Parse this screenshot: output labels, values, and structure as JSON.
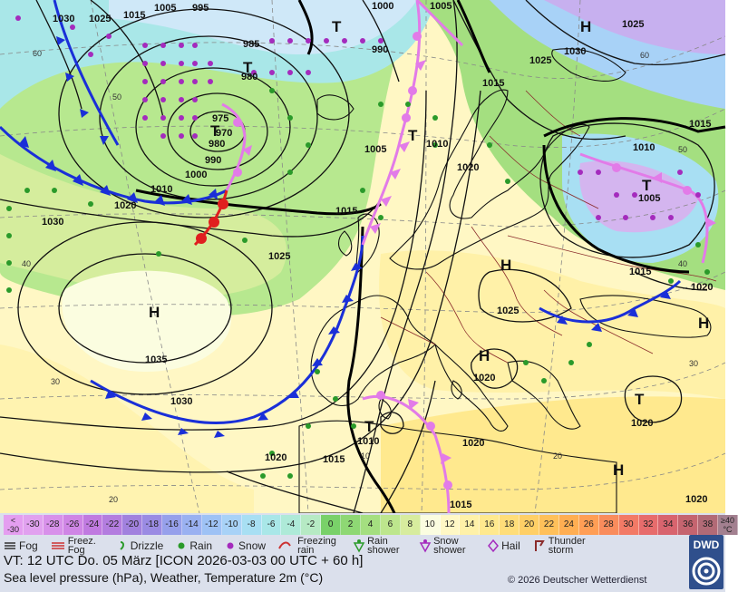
{
  "map": {
    "centers": [
      {
        "type": "H",
        "label": "H"
      },
      {
        "type": "H",
        "label": "H"
      },
      {
        "type": "H",
        "label": "H"
      },
      {
        "type": "H",
        "label": "H"
      },
      {
        "type": "H",
        "label": "H"
      },
      {
        "type": "H",
        "label": "H"
      },
      {
        "type": "T",
        "label": "T"
      },
      {
        "type": "T",
        "label": "T"
      },
      {
        "type": "T",
        "label": "T"
      },
      {
        "type": "T",
        "label": "T"
      },
      {
        "type": "T",
        "label": "T"
      },
      {
        "type": "T",
        "label": "T"
      },
      {
        "type": "T",
        "label": "T"
      }
    ],
    "isobar_labels": [
      "1030",
      "1025",
      "1015",
      "1005",
      "995",
      "1000",
      "1005",
      "985",
      "990",
      "980",
      "975",
      "970",
      "980",
      "990",
      "1000",
      "1010",
      "1020",
      "1030",
      "1015",
      "1005",
      "1010",
      "1020",
      "1025",
      "1035",
      "1030",
      "1020",
      "1010",
      "1015",
      "1020",
      "1030",
      "1025",
      "1015",
      "1010",
      "1005",
      "1015",
      "1020",
      "1025",
      "1020",
      "1025",
      "1015",
      "1020",
      "1020",
      "1015"
    ],
    "lat_labels": [
      "60",
      "50",
      "40",
      "30",
      "20",
      "60",
      "50",
      "40",
      "30",
      "20",
      "10"
    ],
    "colors": {
      "front_cold": "#1a2fd8",
      "front_warm": "#e01f1f",
      "front_occluded": "#e27be8",
      "isobar": "#111111",
      "snow": "#a42bbd",
      "rain": "#2a9a2a"
    }
  },
  "legend": {
    "scale": [
      {
        "label": "< -30",
        "color": "#e49ef0"
      },
      {
        "label": "-30",
        "color": "#e1a1ef"
      },
      {
        "label": "-28",
        "color": "#d891ea"
      },
      {
        "label": "-26",
        "color": "#cf85e5"
      },
      {
        "label": "-24",
        "color": "#c07ae0"
      },
      {
        "label": "-22",
        "color": "#b37ddf"
      },
      {
        "label": "-20",
        "color": "#a181de"
      },
      {
        "label": "-18",
        "color": "#9a8be3"
      },
      {
        "label": "-16",
        "color": "#96a0eb"
      },
      {
        "label": "-14",
        "color": "#9ab1f1"
      },
      {
        "label": "-12",
        "color": "#9ec2f5"
      },
      {
        "label": "-10",
        "color": "#a8d2f7"
      },
      {
        "label": "-8",
        "color": "#a8dff3"
      },
      {
        "label": "-6",
        "color": "#a9e7e8"
      },
      {
        "label": "-4",
        "color": "#aeead8"
      },
      {
        "label": "-2",
        "color": "#b6eac4"
      },
      {
        "label": "0",
        "color": "#79d169"
      },
      {
        "label": "2",
        "color": "#8ed874"
      },
      {
        "label": "4",
        "color": "#a4df80"
      },
      {
        "label": "6",
        "color": "#bde68d"
      },
      {
        "label": "8",
        "color": "#d7ec9e"
      },
      {
        "label": "10",
        "color": "#fbfde0"
      },
      {
        "label": "12",
        "color": "#fff8c5"
      },
      {
        "label": "14",
        "color": "#fff1a8"
      },
      {
        "label": "16",
        "color": "#ffe98e"
      },
      {
        "label": "18",
        "color": "#ffdd79"
      },
      {
        "label": "20",
        "color": "#ffcf66"
      },
      {
        "label": "22",
        "color": "#ffc05a"
      },
      {
        "label": "24",
        "color": "#ffae52"
      },
      {
        "label": "26",
        "color": "#ff9e55"
      },
      {
        "label": "28",
        "color": "#f98c5c"
      },
      {
        "label": "30",
        "color": "#f27a66"
      },
      {
        "label": "32",
        "color": "#e76c6c"
      },
      {
        "label": "34",
        "color": "#d8646e"
      },
      {
        "label": "36",
        "color": "#c5646f"
      },
      {
        "label": "38",
        "color": "#b26a76"
      },
      {
        "label": "≥40 °C",
        "color": "#a38090"
      }
    ],
    "symbols": [
      "Fog",
      "Freez. Fog",
      "Drizzle",
      "Rain",
      "Snow",
      "Freezing rain",
      "Rain shower",
      "Snow shower",
      "Hail",
      "Thunder storm"
    ],
    "valid_time": "VT: 12 UTC Do.   05 März [ICON 2026-03-03  00 UTC + 60 h]",
    "description": "Sea level pressure (hPa), Weather, Temperature 2m (°C)",
    "copyright": "© 2026 Deutscher Wetterdienst",
    "logo_text": "DWD"
  }
}
